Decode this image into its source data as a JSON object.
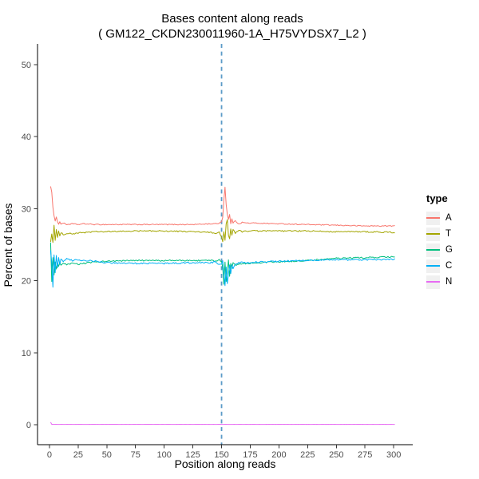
{
  "figure": {
    "background": "#FFFFFF"
  },
  "chart_data": {
    "type": "line",
    "title": "Bases content along reads",
    "subtitle": "( GM122_CKDN230011960-1A_H75VYDSX7_L2 )",
    "xlabel": "Position along reads",
    "ylabel": "Percent of bases",
    "xlim": [
      -10.4,
      316.6
    ],
    "ylim": [
      -2.77,
      52.88
    ],
    "x_ticks": [
      0,
      25,
      50,
      75,
      100,
      125,
      150,
      175,
      200,
      225,
      250,
      275,
      300
    ],
    "y_ticks": [
      0,
      10,
      20,
      30,
      40,
      50
    ],
    "grid": false,
    "axis_color": "#000000",
    "tick_mark_color": "#333333",
    "tick_label_color": "#4D4D4D",
    "vline": {
      "x": 150,
      "style": "dashed",
      "color": "#5B9BC8"
    },
    "legend": {
      "title": "type",
      "position": "right",
      "key_fill": "#F0F0F0"
    },
    "series": [
      {
        "name": "A",
        "color": "#F8766D",
        "noise": 0.07,
        "points": [
          [
            1,
            33.1
          ],
          [
            2,
            32.3
          ],
          [
            3,
            30.2
          ],
          [
            4,
            29.0
          ],
          [
            5,
            28.3
          ],
          [
            6,
            28.9
          ],
          [
            7,
            28.2
          ],
          [
            8,
            27.8
          ],
          [
            9,
            28.2
          ],
          [
            10,
            27.9
          ],
          [
            12,
            28.0
          ],
          [
            15,
            27.8
          ],
          [
            20,
            27.9
          ],
          [
            25,
            27.8
          ],
          [
            30,
            27.9
          ],
          [
            40,
            27.8
          ],
          [
            50,
            27.8
          ],
          [
            75,
            27.8
          ],
          [
            100,
            27.8
          ],
          [
            125,
            27.8
          ],
          [
            140,
            27.9
          ],
          [
            145,
            27.9
          ],
          [
            148,
            28.0
          ],
          [
            150,
            28.2
          ],
          [
            151,
            28.8
          ],
          [
            152,
            31.2
          ],
          [
            153,
            33.0
          ],
          [
            154,
            30.6
          ],
          [
            155,
            29.2
          ],
          [
            156,
            28.5
          ],
          [
            157,
            29.2
          ],
          [
            158,
            27.9
          ],
          [
            159,
            28.6
          ],
          [
            160,
            28.0
          ],
          [
            162,
            28.3
          ],
          [
            165,
            27.9
          ],
          [
            168,
            28.1
          ],
          [
            172,
            28.0
          ],
          [
            180,
            28.0
          ],
          [
            200,
            27.9
          ],
          [
            225,
            27.8
          ],
          [
            250,
            27.7
          ],
          [
            275,
            27.6
          ],
          [
            301,
            27.6
          ]
        ]
      },
      {
        "name": "T",
        "color": "#A3A500",
        "noise": 0.09,
        "points": [
          [
            1,
            25.4
          ],
          [
            2,
            26.5
          ],
          [
            3,
            25.3
          ],
          [
            4,
            27.7
          ],
          [
            5,
            25.6
          ],
          [
            6,
            27.1
          ],
          [
            7,
            26.0
          ],
          [
            8,
            26.9
          ],
          [
            9,
            26.2
          ],
          [
            10,
            26.7
          ],
          [
            12,
            26.4
          ],
          [
            15,
            26.6
          ],
          [
            20,
            26.5
          ],
          [
            25,
            26.6
          ],
          [
            30,
            26.7
          ],
          [
            40,
            26.8
          ],
          [
            50,
            26.8
          ],
          [
            75,
            26.9
          ],
          [
            100,
            26.9
          ],
          [
            125,
            26.8
          ],
          [
            140,
            26.7
          ],
          [
            145,
            26.6
          ],
          [
            148,
            26.7
          ],
          [
            150,
            26.0
          ],
          [
            151,
            25.4
          ],
          [
            152,
            26.8
          ],
          [
            153,
            25.6
          ],
          [
            154,
            27.9
          ],
          [
            155,
            28.4
          ],
          [
            156,
            26.3
          ],
          [
            157,
            25.9
          ],
          [
            158,
            27.2
          ],
          [
            159,
            26.3
          ],
          [
            160,
            27.1
          ],
          [
            162,
            26.6
          ],
          [
            165,
            27.0
          ],
          [
            168,
            26.8
          ],
          [
            172,
            26.9
          ],
          [
            180,
            26.9
          ],
          [
            200,
            26.9
          ],
          [
            225,
            26.9
          ],
          [
            250,
            26.8
          ],
          [
            275,
            26.8
          ],
          [
            301,
            26.7
          ]
        ]
      },
      {
        "name": "G",
        "color": "#00BF7D",
        "noise": 0.1,
        "points": [
          [
            1,
            25.3
          ],
          [
            2,
            19.9
          ],
          [
            3,
            23.2
          ],
          [
            4,
            20.8
          ],
          [
            5,
            22.6
          ],
          [
            6,
            21.6
          ],
          [
            7,
            22.4
          ],
          [
            8,
            21.9
          ],
          [
            9,
            22.5
          ],
          [
            10,
            22.1
          ],
          [
            12,
            22.4
          ],
          [
            15,
            22.2
          ],
          [
            20,
            22.4
          ],
          [
            25,
            22.3
          ],
          [
            30,
            22.4
          ],
          [
            40,
            22.6
          ],
          [
            50,
            22.7
          ],
          [
            75,
            22.8
          ],
          [
            100,
            22.8
          ],
          [
            125,
            22.8
          ],
          [
            140,
            22.8
          ],
          [
            145,
            22.7
          ],
          [
            148,
            23.0
          ],
          [
            150,
            22.6
          ],
          [
            151,
            21.8
          ],
          [
            152,
            19.5
          ],
          [
            153,
            22.6
          ],
          [
            154,
            19.9
          ],
          [
            155,
            21.2
          ],
          [
            156,
            22.9
          ],
          [
            157,
            20.6
          ],
          [
            158,
            22.4
          ],
          [
            159,
            21.7
          ],
          [
            160,
            22.5
          ],
          [
            162,
            22.1
          ],
          [
            165,
            22.3
          ],
          [
            168,
            22.4
          ],
          [
            172,
            22.4
          ],
          [
            180,
            22.5
          ],
          [
            200,
            22.6
          ],
          [
            225,
            22.8
          ],
          [
            250,
            23.1
          ],
          [
            275,
            23.2
          ],
          [
            301,
            23.3
          ]
        ]
      },
      {
        "name": "C",
        "color": "#00B0F6",
        "noise": 0.1,
        "points": [
          [
            1,
            24.2
          ],
          [
            2,
            22.5
          ],
          [
            3,
            19.1
          ],
          [
            4,
            23.6
          ],
          [
            5,
            21.1
          ],
          [
            6,
            23.5
          ],
          [
            7,
            21.8
          ],
          [
            8,
            23.2
          ],
          [
            9,
            22.3
          ],
          [
            10,
            23.0
          ],
          [
            12,
            22.6
          ],
          [
            15,
            23.1
          ],
          [
            20,
            22.8
          ],
          [
            25,
            22.9
          ],
          [
            30,
            22.8
          ],
          [
            40,
            22.7
          ],
          [
            50,
            22.5
          ],
          [
            75,
            22.4
          ],
          [
            100,
            22.4
          ],
          [
            125,
            22.5
          ],
          [
            140,
            22.5
          ],
          [
            145,
            22.6
          ],
          [
            148,
            22.2
          ],
          [
            150,
            22.3
          ],
          [
            151,
            22.8
          ],
          [
            152,
            21.2
          ],
          [
            153,
            19.3
          ],
          [
            154,
            21.9
          ],
          [
            155,
            19.6
          ],
          [
            156,
            20.9
          ],
          [
            157,
            22.2
          ],
          [
            158,
            21.0
          ],
          [
            159,
            22.2
          ],
          [
            160,
            21.7
          ],
          [
            162,
            22.3
          ],
          [
            165,
            22.5
          ],
          [
            168,
            22.6
          ],
          [
            172,
            22.5
          ],
          [
            180,
            22.6
          ],
          [
            200,
            22.7
          ],
          [
            225,
            22.8
          ],
          [
            250,
            22.9
          ],
          [
            275,
            22.9
          ],
          [
            301,
            23.0
          ]
        ]
      },
      {
        "name": "N",
        "color": "#E76BF3",
        "noise": 0.004,
        "points": [
          [
            1,
            0.35
          ],
          [
            2,
            0.05
          ],
          [
            301,
            0.05
          ]
        ]
      }
    ]
  }
}
